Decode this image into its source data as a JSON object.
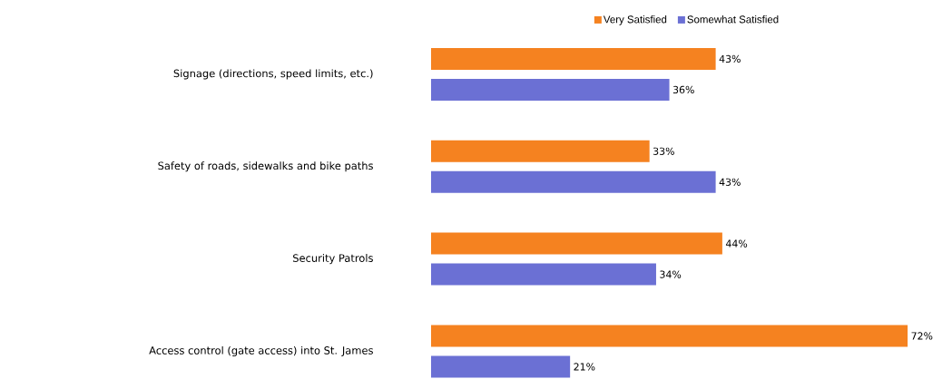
{
  "chart_data": {
    "type": "bar",
    "orientation": "horizontal",
    "legend": "top",
    "categories": [
      "Signage (directions, speed limits, etc.)",
      "Safety of roads, sidewalks and bike paths",
      "Security Patrols",
      "Access control (gate access) into St. James"
    ],
    "series": [
      {
        "name": "Very Satisfied",
        "color": "#f58220",
        "values": [
          43,
          33,
          44,
          72
        ],
        "value_labels": [
          "43%",
          "33%",
          "44%",
          "72%"
        ]
      },
      {
        "name": "Somewhat Satisfied",
        "color": "#6b70d4",
        "values": [
          36,
          43,
          34,
          21
        ],
        "value_labels": [
          "36%",
          "43%",
          "34%",
          "21%"
        ]
      }
    ]
  }
}
